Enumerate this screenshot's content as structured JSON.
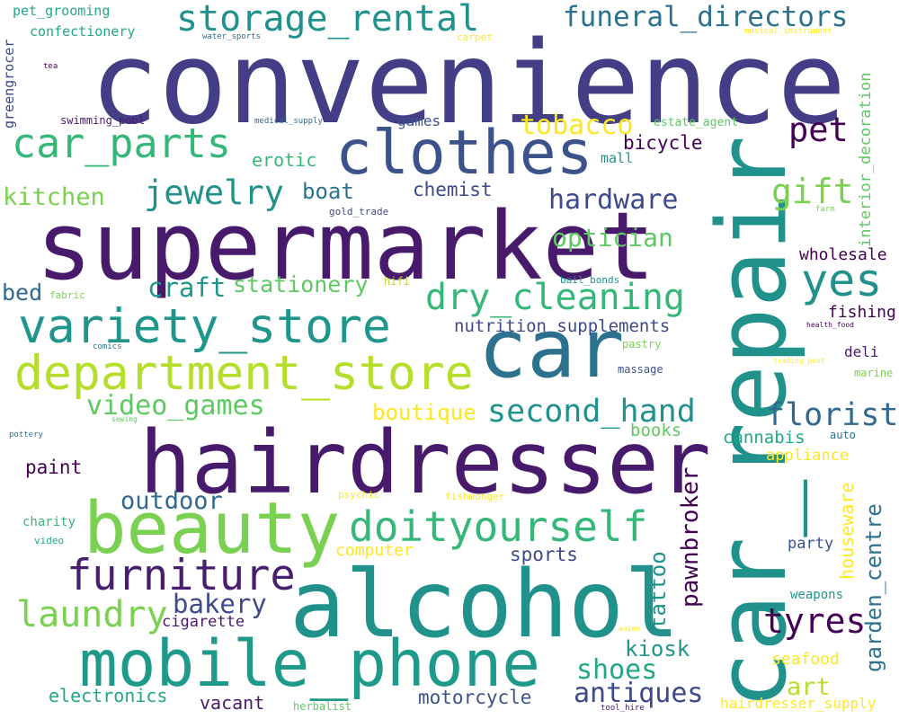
{
  "words": [
    {
      "text": "convenience",
      "color": "#433e85"
    },
    {
      "text": "car_repair",
      "color": "#21918c"
    },
    {
      "text": "supermarket",
      "color": "#481a6c"
    },
    {
      "text": "hairdresser",
      "color": "#481a6c"
    },
    {
      "text": "alcohol",
      "color": "#21918c"
    },
    {
      "text": "car",
      "color": "#2c728e"
    },
    {
      "text": "beauty",
      "color": "#7ad151"
    },
    {
      "text": "mobile_phone",
      "color": "#1f9a8a"
    },
    {
      "text": "clothes",
      "color": "#3b528b"
    },
    {
      "text": "variety_store",
      "color": "#1f968b"
    },
    {
      "text": "department_store",
      "color": "#b5de2b"
    },
    {
      "text": "doityourself",
      "color": "#35b779"
    },
    {
      "text": "furniture",
      "color": "#481f70"
    },
    {
      "text": "car_parts",
      "color": "#35b779"
    },
    {
      "text": "storage_rental",
      "color": "#21918c"
    },
    {
      "text": "dry_cleaning",
      "color": "#35b779"
    },
    {
      "text": "laundry",
      "color": "#7ad151"
    },
    {
      "text": "funeral_directors",
      "color": "#2c728e"
    },
    {
      "text": "second_hand",
      "color": "#21918c"
    },
    {
      "text": "jewelry",
      "color": "#21918c"
    },
    {
      "text": "yes",
      "color": "#21918c"
    },
    {
      "text": "tyres",
      "color": "#440154"
    },
    {
      "text": "florist",
      "color": "#31688e"
    },
    {
      "text": "pet",
      "color": "#440154"
    },
    {
      "text": "gift",
      "color": "#7ad151"
    },
    {
      "text": "optician",
      "color": "#5ec962"
    },
    {
      "text": "hardware",
      "color": "#3e4989"
    },
    {
      "text": "tobacco",
      "color": "#fde725"
    },
    {
      "text": "antiques",
      "color": "#3e4989"
    },
    {
      "text": "video_games",
      "color": "#5ec962"
    },
    {
      "text": "shoes",
      "color": "#22a884"
    },
    {
      "text": "craft",
      "color": "#1f968b"
    },
    {
      "text": "bakery",
      "color": "#3e4989"
    },
    {
      "text": "outdoor",
      "color": "#31688e"
    },
    {
      "text": "garden_centre",
      "color": "#2c728e"
    },
    {
      "text": "pawnbroker",
      "color": "#440154"
    },
    {
      "text": "kitchen",
      "color": "#7ad151"
    },
    {
      "text": "stationery",
      "color": "#5ec962"
    },
    {
      "text": "boutique",
      "color": "#fde725"
    },
    {
      "text": "art",
      "color": "#b5de2b"
    },
    {
      "text": "boat",
      "color": "#2c728e"
    },
    {
      "text": "tattoo",
      "color": "#21918c"
    },
    {
      "text": "bed",
      "color": "#31688e"
    },
    {
      "text": "kiosk",
      "color": "#1f968b"
    },
    {
      "text": "motorcycle",
      "color": "#3b528b"
    },
    {
      "text": "nutrition_supplements",
      "color": "#3e4989"
    },
    {
      "text": "chemist",
      "color": "#3e4989"
    },
    {
      "text": "houseware",
      "color": "#fde725"
    },
    {
      "text": "paint",
      "color": "#440154"
    },
    {
      "text": "electronics",
      "color": "#22a884"
    },
    {
      "text": "sports",
      "color": "#3e4989"
    },
    {
      "text": "vacant",
      "color": "#481a6c"
    },
    {
      "text": "bicycle",
      "color": "#440154"
    },
    {
      "text": "books",
      "color": "#5ec962"
    },
    {
      "text": "cannabis",
      "color": "#22a884"
    },
    {
      "text": "interior_decoration",
      "color": "#5ec962"
    },
    {
      "text": "wholesale",
      "color": "#440154"
    },
    {
      "text": "erotic",
      "color": "#35b779"
    },
    {
      "text": "seafood",
      "color": "#fde725"
    },
    {
      "text": "party",
      "color": "#3b528b"
    },
    {
      "text": "fishing",
      "color": "#440154"
    },
    {
      "text": "appliance",
      "color": "#fde725"
    },
    {
      "text": "cigarette",
      "color": "#481a6c"
    },
    {
      "text": "computer",
      "color": "#fde725"
    },
    {
      "text": "confectionery",
      "color": "#22a884"
    },
    {
      "text": "games",
      "color": "#3b528b"
    },
    {
      "text": "hairdresser_supply",
      "color": "#fde725"
    },
    {
      "text": "weapons",
      "color": "#1f968b"
    },
    {
      "text": "greengrocer",
      "color": "#3e4989"
    },
    {
      "text": "deli",
      "color": "#481a6c"
    },
    {
      "text": "pet_grooming",
      "color": "#22a884"
    },
    {
      "text": "mall",
      "color": "#21918c"
    },
    {
      "text": "charity",
      "color": "#35b779"
    },
    {
      "text": "swimming_pool",
      "color": "#481a6c"
    },
    {
      "text": "estate_agent",
      "color": "#5ec962"
    },
    {
      "text": "gold_trade",
      "color": "#3e4989"
    },
    {
      "text": "hifi",
      "color": "#b5de2b"
    },
    {
      "text": "bail_bonds",
      "color": "#21918c"
    },
    {
      "text": "massage",
      "color": "#3b528b"
    },
    {
      "text": "auto",
      "color": "#2c728e"
    },
    {
      "text": "marine",
      "color": "#7ad151"
    },
    {
      "text": "pastry",
      "color": "#7ad151"
    },
    {
      "text": "herbalist",
      "color": "#5ec962"
    },
    {
      "text": "psychic",
      "color": "#fde725"
    },
    {
      "text": "video",
      "color": "#22a884"
    },
    {
      "text": "fishmonger",
      "color": "#fde725"
    },
    {
      "text": "carpet",
      "color": "#fde725"
    },
    {
      "text": "fabric",
      "color": "#7ad151"
    },
    {
      "text": "medical_supply",
      "color": "#31688e"
    },
    {
      "text": "water_sports",
      "color": "#31688e"
    },
    {
      "text": "tea",
      "color": "#440154"
    },
    {
      "text": "musical_instrument",
      "color": "#fde725"
    },
    {
      "text": "farm",
      "color": "#7ad151"
    },
    {
      "text": "health_food",
      "color": "#440154"
    },
    {
      "text": "trading_post",
      "color": "#fde725"
    },
    {
      "text": "comics",
      "color": "#2c728e"
    },
    {
      "text": "sewing",
      "color": "#5ec962"
    },
    {
      "text": "pottery",
      "color": "#2c728e"
    },
    {
      "text": "anime",
      "color": "#fde725"
    },
    {
      "text": "tool_hire",
      "color": "#481a6c"
    }
  ]
}
